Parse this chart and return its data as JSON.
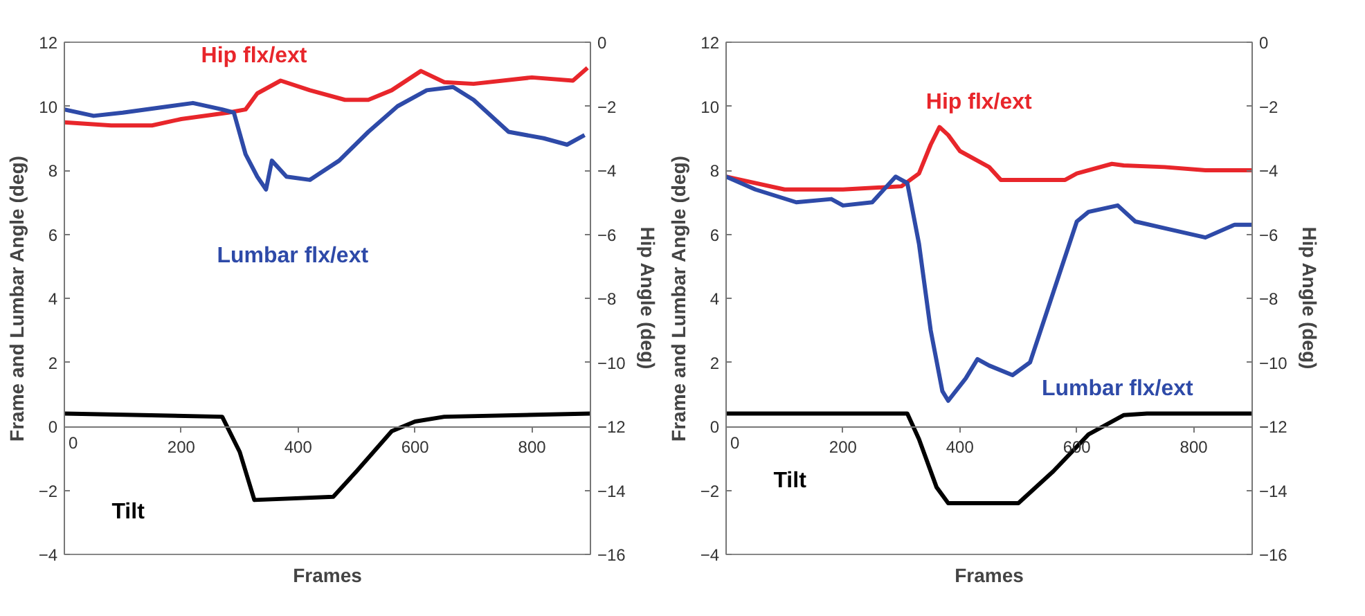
{
  "chart_data": [
    {
      "type": "line",
      "xlabel": "Frames",
      "ylabel": "Frame and Lumbar Angle (deg)",
      "y2label": "Hip Angle (deg)",
      "xlim": [
        0,
        900
      ],
      "xticks": [
        0,
        200,
        400,
        600,
        800
      ],
      "ylim": [
        -4,
        12
      ],
      "yticks": [
        -4,
        -2,
        0,
        2,
        4,
        6,
        8,
        10,
        12
      ],
      "y2lim": [
        -16,
        0
      ],
      "y2ticks": [
        -16,
        -14,
        -12,
        -10,
        -8,
        -6,
        -4,
        -2,
        0
      ],
      "grid": false,
      "line_style": "solid",
      "series": [
        {
          "name": "Hip flx/ext",
          "color": "#e8262b",
          "axis": "y2",
          "x": [
            0,
            80,
            150,
            200,
            280,
            310,
            330,
            370,
            420,
            480,
            520,
            560,
            610,
            650,
            700,
            800,
            870,
            895
          ],
          "values": [
            -2.5,
            -2.6,
            -2.6,
            -2.4,
            -2.2,
            -2.1,
            -1.6,
            -1.2,
            -1.5,
            -1.8,
            -1.8,
            -1.5,
            -0.9,
            -1.25,
            -1.3,
            -1.1,
            -1.2,
            -0.8
          ]
        },
        {
          "name": "Lumbar flx/ext",
          "color": "#2e4aa8",
          "x": [
            0,
            50,
            100,
            180,
            220,
            270,
            290,
            310,
            330,
            345,
            355,
            380,
            420,
            470,
            520,
            570,
            620,
            665,
            700,
            760,
            820,
            860,
            890
          ],
          "values": [
            9.9,
            9.7,
            9.8,
            10.0,
            10.1,
            9.9,
            9.8,
            8.5,
            7.8,
            7.4,
            8.3,
            7.8,
            7.7,
            8.3,
            9.2,
            10.0,
            10.5,
            10.6,
            10.2,
            9.2,
            9.0,
            8.8,
            9.1
          ]
        },
        {
          "name": "Tilt",
          "color": "#000000",
          "x": [
            0,
            270,
            300,
            325,
            460,
            500,
            560,
            600,
            650,
            900
          ],
          "values": [
            0.4,
            0.3,
            -0.8,
            -2.3,
            -2.2,
            -1.4,
            -0.15,
            0.15,
            0.3,
            0.4
          ]
        }
      ]
    },
    {
      "type": "line",
      "xlabel": "Frames",
      "ylabel": "Frame and Lumbar Angle (deg)",
      "y2label": "Hip Angle (deg)",
      "xlim": [
        0,
        900
      ],
      "xticks": [
        0,
        200,
        400,
        600,
        800
      ],
      "ylim": [
        -4,
        12
      ],
      "yticks": [
        -4,
        -2,
        0,
        2,
        4,
        6,
        8,
        10,
        12
      ],
      "y2lim": [
        -16,
        0
      ],
      "y2ticks": [
        -16,
        -14,
        -12,
        -10,
        -8,
        -6,
        -4,
        -2,
        0
      ],
      "grid": false,
      "line_style": "solid",
      "series": [
        {
          "name": "Hip flx/ext",
          "color": "#e8262b",
          "axis": "y2",
          "x": [
            0,
            100,
            200,
            300,
            330,
            350,
            365,
            380,
            400,
            450,
            470,
            520,
            580,
            600,
            660,
            680,
            750,
            820,
            900
          ],
          "values": [
            -4.2,
            -4.6,
            -4.6,
            -4.5,
            -4.1,
            -3.2,
            -2.65,
            -2.9,
            -3.4,
            -3.9,
            -4.3,
            -4.3,
            -4.3,
            -4.1,
            -3.8,
            -3.85,
            -3.9,
            -4.0,
            -4.0
          ]
        },
        {
          "name": "Lumbar flx/ext",
          "color": "#2e4aa8",
          "x": [
            0,
            50,
            120,
            180,
            200,
            250,
            290,
            310,
            330,
            350,
            370,
            380,
            410,
            430,
            450,
            490,
            520,
            560,
            600,
            620,
            670,
            700,
            760,
            820,
            870,
            900
          ],
          "values": [
            7.8,
            7.4,
            7.0,
            7.1,
            6.9,
            7.0,
            7.8,
            7.6,
            5.7,
            3.0,
            1.1,
            0.8,
            1.5,
            2.1,
            1.9,
            1.6,
            2.0,
            4.2,
            6.4,
            6.7,
            6.9,
            6.4,
            6.15,
            5.9,
            6.3,
            6.3
          ]
        },
        {
          "name": "Tilt",
          "color": "#000000",
          "x": [
            0,
            310,
            330,
            360,
            380,
            500,
            560,
            620,
            680,
            720,
            900
          ],
          "values": [
            0.4,
            0.4,
            -0.4,
            -1.9,
            -2.4,
            -2.4,
            -1.4,
            -0.25,
            0.35,
            0.4,
            0.4
          ]
        }
      ]
    }
  ]
}
